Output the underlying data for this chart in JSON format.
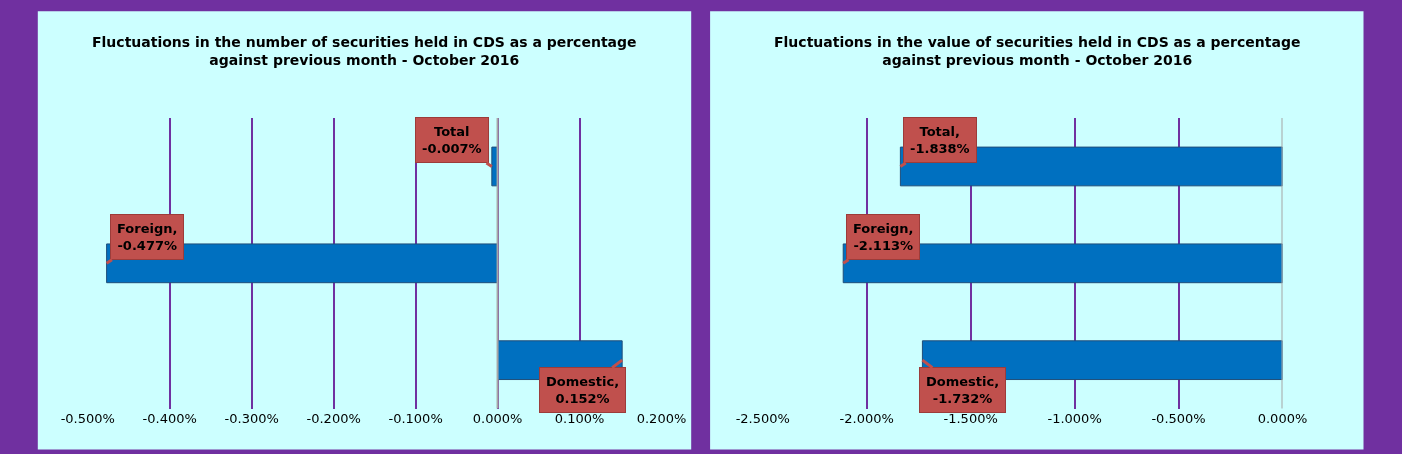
{
  "chart_data": [
    {
      "type": "bar",
      "orientation": "horizontal",
      "title": "Fluctuations in the number of securities held in CDS as a percentage against previous month - October 2016",
      "categories": [
        null,
        null,
        null
      ],
      "values": [
        -0.007,
        -0.477,
        0.152
      ],
      "value_labels": [
        "Total\n-0.007%",
        "Foreign,\n-0.477%",
        "Domestic,\n0.152%"
      ],
      "color": "#0070c0",
      "xlim": [
        -0.5,
        0.2
      ],
      "xticks": [
        {
          "value": -0.5,
          "label": "-0.500%"
        },
        {
          "value": -0.4,
          "label": "-0.400%"
        },
        {
          "value": -0.3,
          "label": "-0.300%"
        },
        {
          "value": -0.2,
          "label": "-0.200%"
        },
        {
          "value": -0.1,
          "label": "-0.100%"
        },
        {
          "value": 0,
          "label": "0.000%"
        },
        {
          "value": 0.1,
          "label": "0.100%"
        },
        {
          "value": 0.2,
          "label": "0.200%"
        }
      ],
      "grid": "x",
      "ref_lines": [
        {
          "axis": "x",
          "value": 0,
          "color": "#a6a6a6"
        }
      ]
    },
    {
      "type": "bar",
      "orientation": "horizontal",
      "title": "Fluctuations in the value of securities held in CDS as a percentage against previous month - October 2016",
      "categories": [
        null,
        null,
        null
      ],
      "values": [
        -1.838,
        -2.113,
        -1.732
      ],
      "value_labels": [
        "Total,\n-1.838%",
        "Foreign,\n-2.113%",
        "Domestic,\n-1.732%"
      ],
      "color": "#0070c0",
      "xlim": [
        -2.5,
        0
      ],
      "xticks": [
        {
          "value": -2.5,
          "label": "-2.500%"
        },
        {
          "value": -2,
          "label": "-2.000%"
        },
        {
          "value": -1.5,
          "label": "-1.500%"
        },
        {
          "value": -1,
          "label": "-1.000%"
        },
        {
          "value": -0.5,
          "label": "-0.500%"
        },
        {
          "value": 0,
          "label": "0.000%"
        }
      ],
      "grid": "x",
      "ref_lines": [
        {
          "axis": "x",
          "value": 0,
          "color": "#a6a6a6"
        }
      ]
    }
  ]
}
